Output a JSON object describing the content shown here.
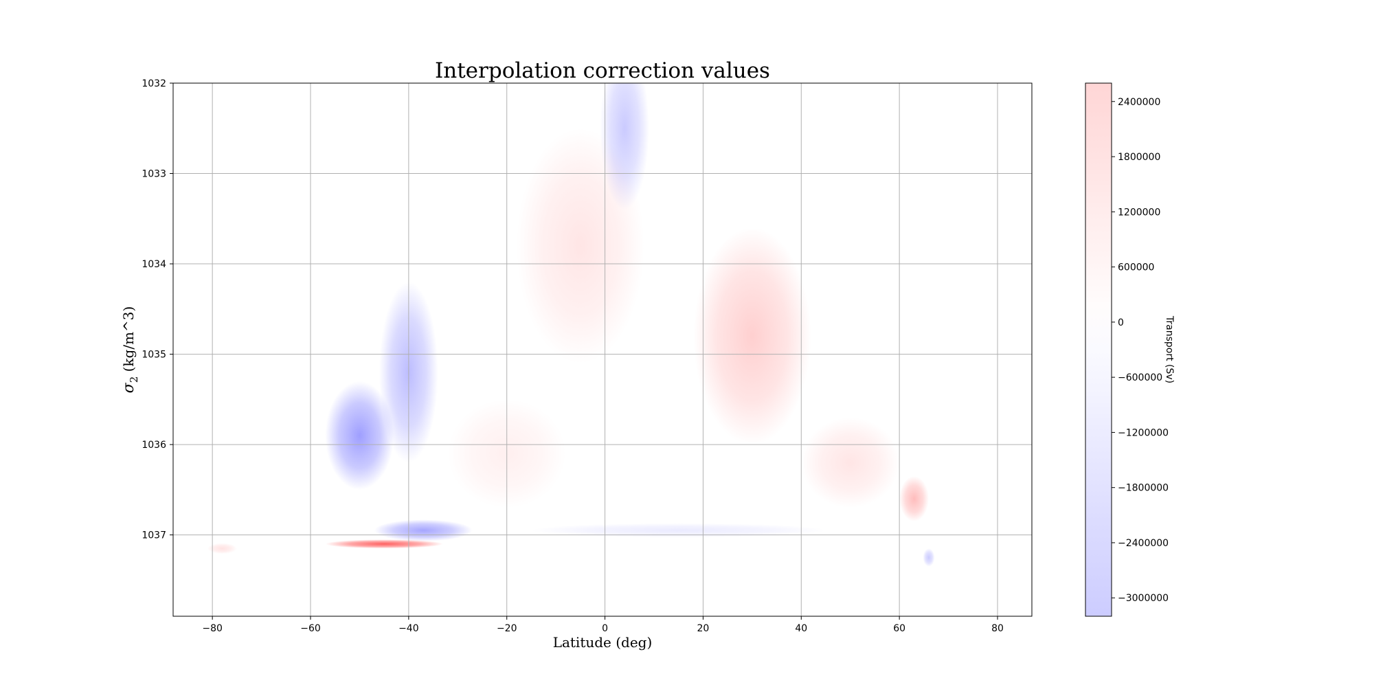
{
  "chart_data": {
    "type": "heatmap",
    "title": "Interpolation correction values",
    "xlabel": "Latitude (deg)",
    "ylabel_symbol": "σ",
    "ylabel_subscript": "2",
    "ylabel_units": " (kg/m^3)",
    "xlim": [
      -88,
      87
    ],
    "ylim": [
      1037.9,
      1032
    ],
    "y_inverted": true,
    "grid": true,
    "x_ticks": [
      -80,
      -60,
      -40,
      -20,
      0,
      20,
      40,
      60,
      80
    ],
    "x_tick_labels": [
      "−80",
      "−60",
      "−40",
      "−20",
      "0",
      "20",
      "40",
      "60",
      "80"
    ],
    "y_ticks": [
      1032,
      1033,
      1034,
      1035,
      1036,
      1037
    ],
    "y_tick_labels": [
      "1032",
      "1033",
      "1034",
      "1035",
      "1036",
      "1037"
    ],
    "colormap": "bwr",
    "color_low": "#0000ff",
    "color_mid": "#ffffff",
    "color_high": "#ff0000",
    "colorbar": {
      "label": "Transport (Sv)",
      "range": [
        -3200000,
        2600000
      ],
      "ticks": [
        2400000,
        1800000,
        1200000,
        600000,
        0,
        -600000,
        -1200000,
        -1800000,
        -2400000,
        -3000000
      ],
      "tick_labels": [
        "2400000",
        "1800000",
        "1200000",
        "600000",
        "0",
        "−600000",
        "−1200000",
        "−1800000",
        "−2400000",
        "−3000000"
      ]
    },
    "regions": [
      {
        "x": 4,
        "y": 1032.5,
        "sx": 5,
        "sy": 0.9,
        "value": -400000
      },
      {
        "x": -5,
        "y": 1033.8,
        "sx": 13,
        "sy": 1.3,
        "value": 280000
      },
      {
        "x": -40,
        "y": 1035.2,
        "sx": 6,
        "sy": 1.0,
        "value": -450000
      },
      {
        "x": -50,
        "y": 1035.9,
        "sx": 7,
        "sy": 0.6,
        "value": -550000
      },
      {
        "x": 30,
        "y": 1034.8,
        "sx": 12,
        "sy": 1.2,
        "value": 380000
      },
      {
        "x": 50,
        "y": 1036.2,
        "sx": 10,
        "sy": 0.5,
        "value": 280000
      },
      {
        "x": -20,
        "y": 1036.1,
        "sx": 12,
        "sy": 0.6,
        "value": 220000
      },
      {
        "x": -37,
        "y": 1036.95,
        "sx": 10,
        "sy": 0.12,
        "value": -520000
      },
      {
        "x": 15,
        "y": 1036.95,
        "sx": 30,
        "sy": 0.08,
        "value": -250000
      },
      {
        "x": -45,
        "y": 1037.1,
        "sx": 12,
        "sy": 0.05,
        "value": 900000
      },
      {
        "x": 63,
        "y": 1036.6,
        "sx": 3,
        "sy": 0.25,
        "value": 450000
      },
      {
        "x": 66,
        "y": 1037.25,
        "sx": 1.2,
        "sy": 0.1,
        "value": -400000
      },
      {
        "x": -78,
        "y": 1037.15,
        "sx": 3,
        "sy": 0.06,
        "value": 300000
      }
    ]
  }
}
